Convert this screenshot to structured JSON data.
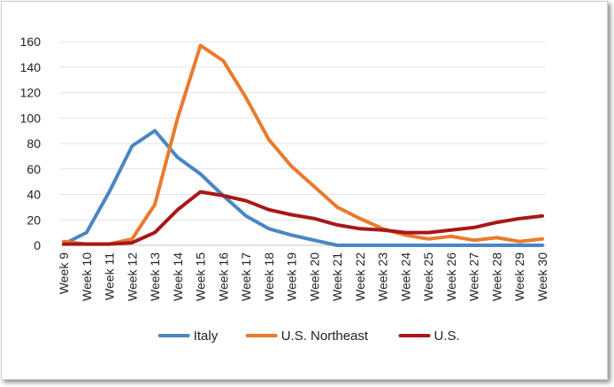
{
  "chart_data": {
    "type": "line",
    "title": "",
    "xlabel": "",
    "ylabel": "",
    "ylim": [
      0,
      160
    ],
    "yticks": [
      0,
      20,
      40,
      60,
      80,
      100,
      120,
      140,
      160
    ],
    "grid": true,
    "legend_position": "bottom",
    "categories": [
      "Week 9",
      "Week 10",
      "Week 11",
      "Week 12",
      "Week 13",
      "Week 14",
      "Week 15",
      "Week 16",
      "Week 17",
      "Week 18",
      "Week 19",
      "Week 20",
      "Week 21",
      "Week 22",
      "Week 23",
      "Week 24",
      "Week 25",
      "Week 26",
      "Week 27",
      "Week 28",
      "Week 29",
      "Week 30"
    ],
    "series": [
      {
        "name": "Italy",
        "color": "#4a86c5",
        "values": [
          1,
          10,
          42,
          78,
          90,
          69,
          56,
          39,
          23,
          13,
          8,
          4,
          0,
          0,
          0,
          0,
          0,
          0,
          0,
          0,
          0,
          0
        ]
      },
      {
        "name": "U.S. Northeast",
        "color": "#e97b2e",
        "values": [
          3,
          1,
          1,
          5,
          32,
          100,
          157,
          145,
          116,
          83,
          62,
          46,
          30,
          21,
          13,
          8,
          5,
          7,
          4,
          6,
          3,
          5
        ]
      },
      {
        "name": "U.S.",
        "color": "#a81818",
        "values": [
          1,
          1,
          1,
          2,
          10,
          28,
          42,
          39,
          35,
          28,
          24,
          21,
          16,
          13,
          12,
          10,
          10,
          12,
          14,
          18,
          21,
          23
        ]
      }
    ]
  }
}
